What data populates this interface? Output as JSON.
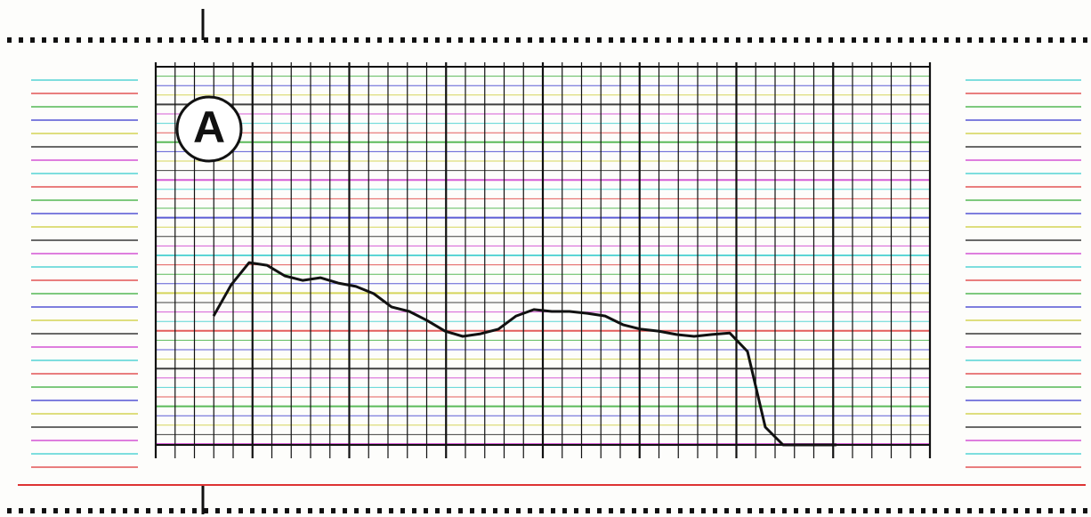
{
  "chart_data": {
    "type": "line",
    "annotation": "A",
    "series": [
      {
        "color": "#111111",
        "values": [
          34.1,
          42.4,
          48.2,
          47.5,
          44.7,
          43.5,
          44.2,
          42.8,
          41.9,
          40,
          36.5,
          35.3,
          32.9,
          30.1,
          28.7,
          29.4,
          30.6,
          34.1,
          35.8,
          35.3,
          35.3,
          34.8,
          34.1,
          31.8,
          30.6,
          30.1,
          29.2,
          28.7,
          29.2,
          29.6,
          24.7,
          4.7,
          0,
          0,
          0,
          0
        ]
      }
    ],
    "ylim": [
      0,
      100
    ]
  }
}
